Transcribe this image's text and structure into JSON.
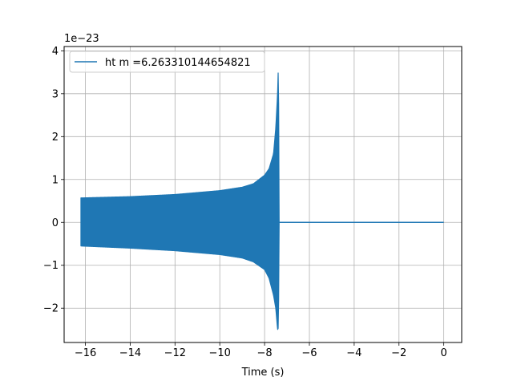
{
  "chart_data": {
    "type": "line",
    "title": "",
    "xlabel": "Time (s)",
    "ylabel": "",
    "y_offset_text": "1e−23",
    "y_scale_factor": 1e-23,
    "xlim": [
      -16.95,
      0.8
    ],
    "ylim": [
      -2.8,
      4.1
    ],
    "xticks": [
      -16,
      -14,
      -12,
      -10,
      -8,
      -6,
      -4,
      -2,
      0
    ],
    "xtick_labels": [
      "−16",
      "−14",
      "−12",
      "−10",
      "−8",
      "−6",
      "−4",
      "−2",
      "0"
    ],
    "yticks": [
      -2,
      -1,
      0,
      1,
      2,
      3,
      4
    ],
    "ytick_labels": [
      "−2",
      "−1",
      "0",
      "1",
      "2",
      "3",
      "4"
    ],
    "grid": true,
    "legend": {
      "location": "upper-left"
    },
    "series": [
      {
        "name": "ht m =6.263310144654821",
        "color": "#1f77b4",
        "style": "chirp",
        "x_start": -16.2,
        "x_merger": -7.35,
        "x_end": 0.0,
        "upper_envelope": [
          [
            -16.2,
            0.57
          ],
          [
            -14,
            0.6
          ],
          [
            -12,
            0.65
          ],
          [
            -10,
            0.74
          ],
          [
            -9,
            0.82
          ],
          [
            -8.5,
            0.9
          ],
          [
            -8.0,
            1.1
          ],
          [
            -7.8,
            1.25
          ],
          [
            -7.6,
            1.6
          ],
          [
            -7.5,
            2.2
          ],
          [
            -7.42,
            3.0
          ],
          [
            -7.38,
            3.75
          ],
          [
            -7.35,
            0.0
          ]
        ],
        "lower_envelope": [
          [
            -16.2,
            -0.55
          ],
          [
            -14,
            -0.6
          ],
          [
            -12,
            -0.66
          ],
          [
            -10,
            -0.75
          ],
          [
            -9,
            -0.83
          ],
          [
            -8.5,
            -0.92
          ],
          [
            -8.0,
            -1.1
          ],
          [
            -7.8,
            -1.3
          ],
          [
            -7.6,
            -1.7
          ],
          [
            -7.5,
            -2.0
          ],
          [
            -7.42,
            -2.5
          ],
          [
            -7.38,
            -2.45
          ],
          [
            -7.35,
            0.0
          ]
        ],
        "flat_value": 0.0
      }
    ]
  }
}
